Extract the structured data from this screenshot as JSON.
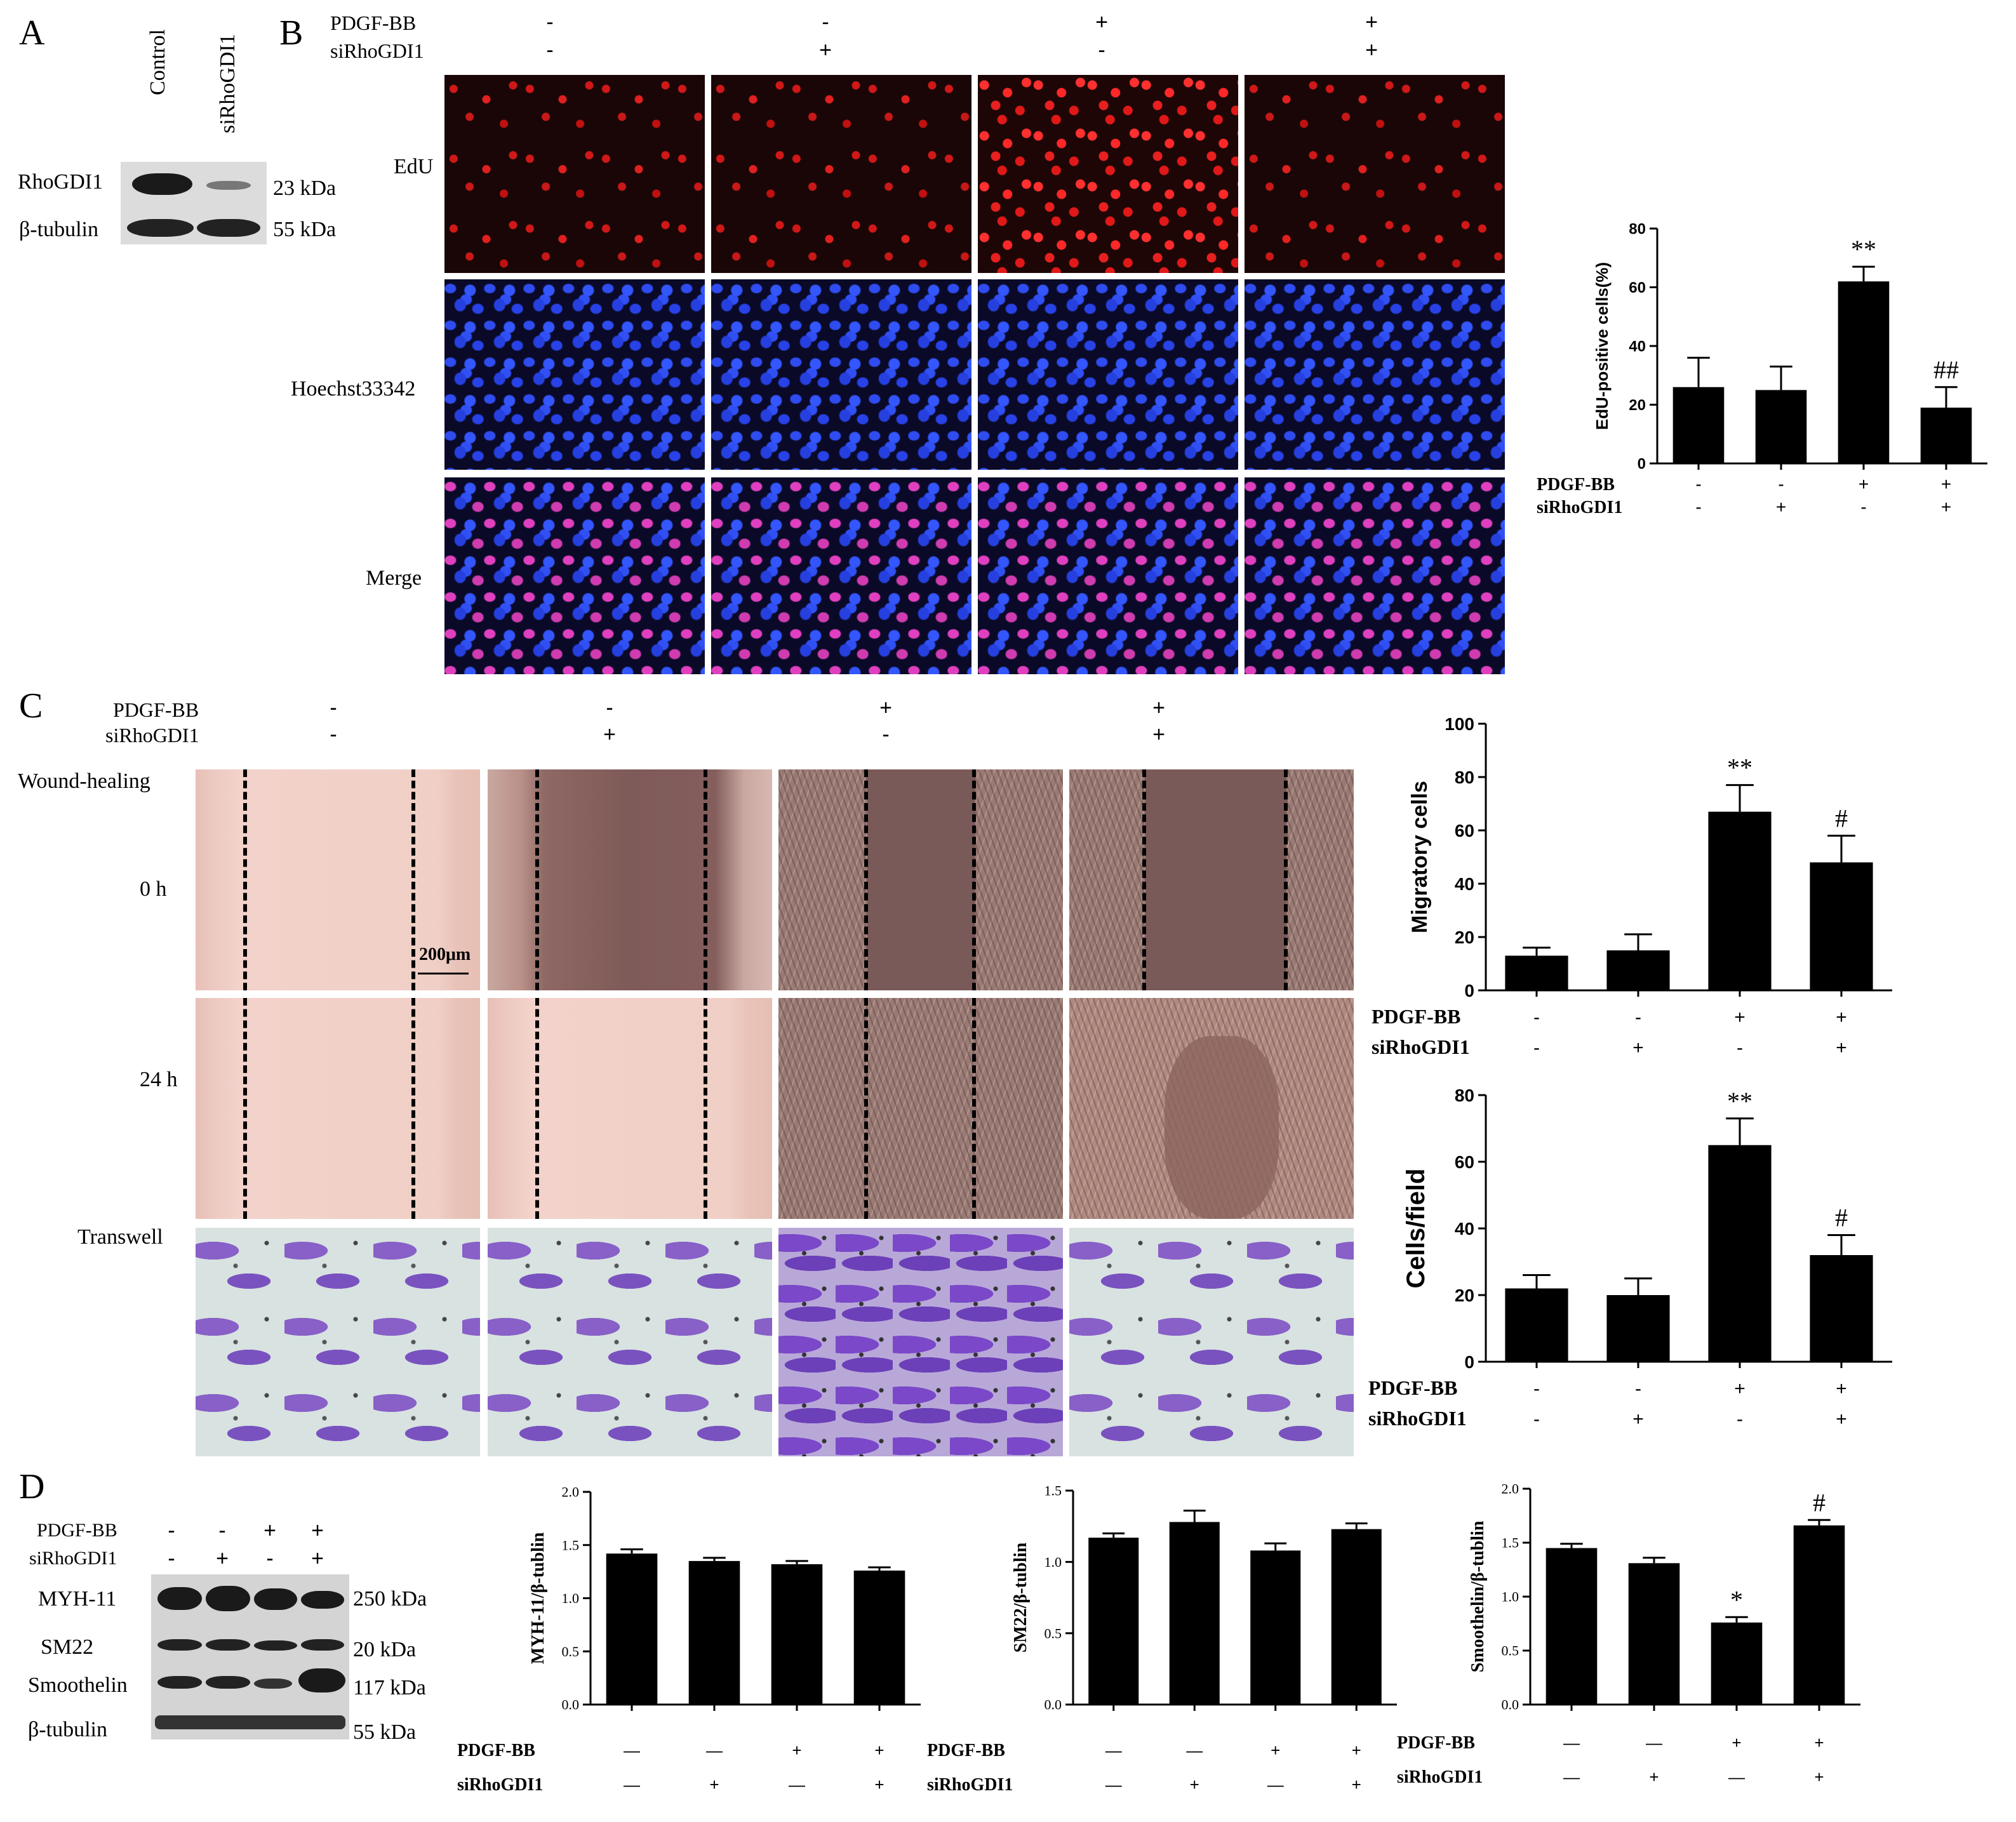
{
  "panels": {
    "a": "A",
    "b": "B",
    "c": "C",
    "d": "D"
  },
  "panel_a": {
    "lanes": [
      "Control",
      "siRhoGDI1"
    ],
    "rows": [
      {
        "name": "RhoGDI1",
        "mw": "23 kDa"
      },
      {
        "name": "β-tubulin",
        "mw": "55 kDa"
      }
    ]
  },
  "panel_b": {
    "treat": {
      "pdgf_label": "PDGF-BB",
      "si_label": "siRhoGDI1",
      "pdgf": [
        "-",
        "-",
        "+",
        "+"
      ],
      "si": [
        "-",
        "+",
        "-",
        "+"
      ]
    },
    "rows": [
      "EdU",
      "Hoechst33342",
      "Merge"
    ]
  },
  "panel_c": {
    "treat": {
      "pdgf_label": "PDGF-BB",
      "si_label": "siRhoGDI1",
      "pdgf": [
        "-",
        "-",
        "+",
        "+"
      ],
      "si": [
        "-",
        "+",
        "-",
        "+"
      ]
    },
    "section_title": "Wound-healing",
    "rows": [
      "0 h",
      "24 h",
      "Transwell"
    ],
    "scale_label": "200μm"
  },
  "panel_d": {
    "treat": {
      "pdgf_label": "PDGF-BB",
      "si_label": "siRhoGDI1",
      "pdgf": [
        "-",
        "-",
        "+",
        "+"
      ],
      "si": [
        "-",
        "+",
        "-",
        "+"
      ]
    },
    "rows": [
      {
        "name": "MYH-11",
        "mw": "250 kDa"
      },
      {
        "name": "SM22",
        "mw": "20 kDa"
      },
      {
        "name": "Smoothelin",
        "mw": "117 kDa"
      },
      {
        "name": "β-tubulin",
        "mw": "55 kDa"
      }
    ]
  },
  "chart_data": [
    {
      "id": "edu",
      "type": "bar",
      "ylabel": "EdU-positive cells(%)",
      "ylim": [
        0,
        80
      ],
      "yticks": [
        0,
        20,
        40,
        60,
        80
      ],
      "values": [
        26,
        25,
        62,
        19
      ],
      "errors": [
        10,
        8,
        5,
        7
      ],
      "annotations": [
        "",
        "",
        "**",
        "##"
      ],
      "rows": [
        {
          "label": "PDGF-BB",
          "marks": [
            "-",
            "-",
            "+",
            "+"
          ]
        },
        {
          "label": "siRhoGDI1",
          "marks": [
            "-",
            "+",
            "-",
            "+"
          ]
        }
      ]
    },
    {
      "id": "migratory",
      "type": "bar",
      "ylabel": "Migratory cells",
      "ylim": [
        0,
        100
      ],
      "yticks": [
        0,
        20,
        40,
        60,
        80,
        100
      ],
      "values": [
        13,
        15,
        67,
        48
      ],
      "errors": [
        3,
        6,
        10,
        10
      ],
      "annotations": [
        "",
        "",
        "**",
        "#"
      ],
      "rows": [
        {
          "label": "PDGF-BB",
          "marks": [
            "-",
            "-",
            "+",
            "+"
          ]
        },
        {
          "label": "siRhoGDI1",
          "marks": [
            "-",
            "+",
            "-",
            "+"
          ]
        }
      ]
    },
    {
      "id": "cellsfield",
      "type": "bar",
      "ylabel": "Cells/field",
      "ylim": [
        0,
        80
      ],
      "yticks": [
        0,
        20,
        40,
        60,
        80
      ],
      "values": [
        22,
        20,
        65,
        32
      ],
      "errors": [
        4,
        5,
        8,
        6
      ],
      "annotations": [
        "",
        "",
        "**",
        "#"
      ],
      "rows": [
        {
          "label": "PDGF-BB",
          "marks": [
            "-",
            "-",
            "+",
            "+"
          ]
        },
        {
          "label": "siRhoGDI1",
          "marks": [
            "-",
            "+",
            "-",
            "+"
          ]
        }
      ]
    },
    {
      "id": "myh11",
      "type": "bar",
      "ylabel": "MYH-11/β-tublin",
      "ylim": [
        0,
        2.0
      ],
      "yticks": [
        0.0,
        0.5,
        1.0,
        1.5,
        2.0
      ],
      "values": [
        1.42,
        1.35,
        1.32,
        1.26
      ],
      "errors": [
        0.04,
        0.03,
        0.03,
        0.03
      ],
      "annotations": [
        "",
        "",
        "",
        ""
      ],
      "rows": [
        {
          "label": "PDGF-BB",
          "marks": [
            "—",
            "—",
            "+",
            "+"
          ]
        },
        {
          "label": "siRhoGDI1",
          "marks": [
            "—",
            "+",
            "—",
            "+"
          ]
        }
      ]
    },
    {
      "id": "sm22",
      "type": "bar",
      "ylabel": "SM22/β-tublin",
      "ylim": [
        0,
        1.5
      ],
      "yticks": [
        0.0,
        0.5,
        1.0,
        1.5
      ],
      "values": [
        1.17,
        1.28,
        1.08,
        1.23
      ],
      "errors": [
        0.03,
        0.08,
        0.05,
        0.04
      ],
      "annotations": [
        "",
        "",
        "",
        ""
      ],
      "rows": [
        {
          "label": "PDGF-BB",
          "marks": [
            "—",
            "—",
            "+",
            "+"
          ]
        },
        {
          "label": "siRhoGDI1",
          "marks": [
            "—",
            "+",
            "—",
            "+"
          ]
        }
      ]
    },
    {
      "id": "smoothelin",
      "type": "bar",
      "ylabel": "Smoothelin/β-tublin",
      "ylim": [
        0,
        2.0
      ],
      "yticks": [
        0.0,
        0.5,
        1.0,
        1.5,
        2.0
      ],
      "values": [
        1.45,
        1.31,
        0.76,
        1.66
      ],
      "errors": [
        0.04,
        0.05,
        0.05,
        0.05
      ],
      "annotations": [
        "",
        "",
        "*",
        "#"
      ],
      "rows": [
        {
          "label": "PDGF-BB",
          "marks": [
            "—",
            "—",
            "+",
            "+"
          ]
        },
        {
          "label": "siRhoGDI1",
          "marks": [
            "—",
            "+",
            "—",
            "+"
          ]
        }
      ]
    }
  ]
}
